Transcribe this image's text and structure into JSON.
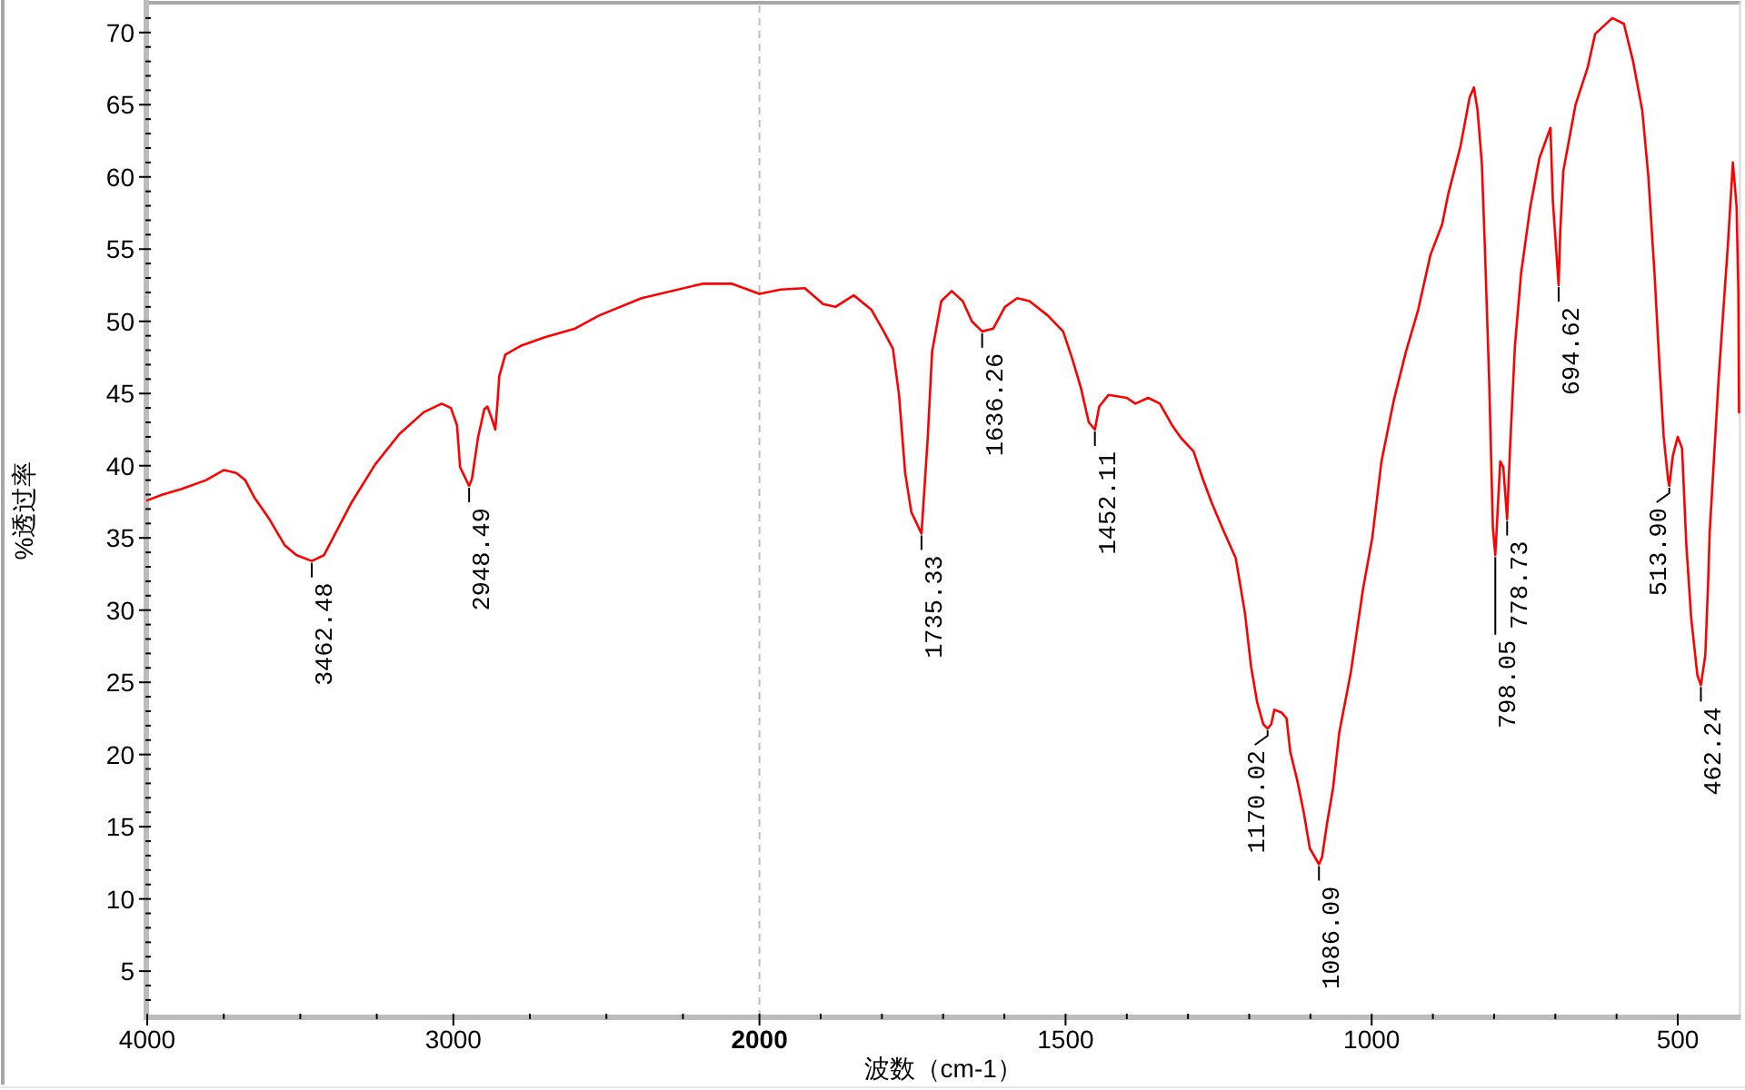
{
  "chart_data": [
    {
      "type": "line",
      "ylabel": "%透过率",
      "x": [
        4000,
        3950,
        3887,
        3808,
        3749,
        3709,
        3680,
        3650,
        3601,
        3551,
        3512,
        3462.48,
        3423,
        3393,
        3334,
        3255,
        3176,
        3097,
        3038,
        3008,
        2988,
        2978,
        2948.49,
        2939,
        2919,
        2899,
        2889,
        2875,
        2863,
        2856,
        2850,
        2830,
        2780,
        2701,
        2602,
        2524,
        2385,
        2187,
        2089,
        2000
      ],
      "series": [
        {
          "color": "#ff0000",
          "values": [
            37.6,
            38.0,
            38.4,
            39.0,
            39.7,
            39.5,
            39.0,
            37.8,
            36.3,
            34.5,
            33.8,
            33.4,
            33.8,
            35.0,
            37.4,
            40.1,
            42.2,
            43.7,
            44.3,
            44.0,
            42.8,
            39.9,
            38.6,
            39.1,
            42.0,
            43.9,
            44.1,
            43.3,
            42.5,
            44.3,
            46.2,
            47.7,
            48.3,
            48.9,
            49.5,
            50.4,
            51.6,
            52.6,
            52.6,
            51.9
          ]
        }
      ],
      "xlim": [
        4000,
        2000
      ],
      "ylim": [
        1.8,
        72
      ],
      "xticks": [
        4000,
        {
          "value": 3750,
          "label": null
        },
        {
          "value": 3500,
          "label": null
        },
        {
          "value": 3250,
          "label": null
        },
        3000,
        {
          "value": 2750,
          "label": null
        },
        {
          "value": 2500,
          "label": null
        },
        {
          "value": 2250,
          "label": null
        }
      ],
      "yticks": [
        {
          "value": 3,
          "label": null
        },
        {
          "value": 4,
          "label": null
        },
        5,
        {
          "value": 6,
          "label": null
        },
        {
          "value": 7,
          "label": null
        },
        {
          "value": 8,
          "label": null
        },
        {
          "value": 9,
          "label": null
        },
        10,
        {
          "value": 11,
          "label": null
        },
        {
          "value": 12,
          "label": null
        },
        {
          "value": 13,
          "label": null
        },
        {
          "value": 14,
          "label": null
        },
        15,
        {
          "value": 16,
          "label": null
        },
        {
          "value": 17,
          "label": null
        },
        {
          "value": 18,
          "label": null
        },
        {
          "value": 19,
          "label": null
        },
        20,
        {
          "value": 21,
          "label": null
        },
        {
          "value": 22,
          "label": null
        },
        {
          "value": 23,
          "label": null
        },
        {
          "value": 24,
          "label": null
        },
        25,
        {
          "value": 26,
          "label": null
        },
        {
          "value": 27,
          "label": null
        },
        {
          "value": 28,
          "label": null
        },
        {
          "value": 29,
          "label": null
        },
        30,
        {
          "value": 31,
          "label": null
        },
        {
          "value": 32,
          "label": null
        },
        {
          "value": 33,
          "label": null
        },
        {
          "value": 34,
          "label": null
        },
        35,
        {
          "value": 36,
          "label": null
        },
        {
          "value": 37,
          "label": null
        },
        {
          "value": 38,
          "label": null
        },
        {
          "value": 39,
          "label": null
        },
        40,
        {
          "value": 41,
          "label": null
        },
        {
          "value": 42,
          "label": null
        },
        {
          "value": 43,
          "label": null
        },
        {
          "value": 44,
          "label": null
        },
        45,
        {
          "value": 46,
          "label": null
        },
        {
          "value": 47,
          "label": null
        },
        {
          "value": 48,
          "label": null
        },
        {
          "value": 49,
          "label": null
        },
        50,
        {
          "value": 51,
          "label": null
        },
        {
          "value": 52,
          "label": null
        },
        {
          "value": 53,
          "label": null
        },
        {
          "value": 54,
          "label": null
        },
        55,
        {
          "value": 56,
          "label": null
        },
        {
          "value": 57,
          "label": null
        },
        {
          "value": 58,
          "label": null
        },
        {
          "value": 59,
          "label": null
        },
        60,
        {
          "value": 61,
          "label": null
        },
        {
          "value": 62,
          "label": null
        },
        {
          "value": 63,
          "label": null
        },
        {
          "value": 64,
          "label": null
        },
        65,
        {
          "value": 66,
          "label": null
        },
        {
          "value": 67,
          "label": null
        },
        {
          "value": 68,
          "label": null
        },
        {
          "value": 69,
          "label": null
        },
        70,
        {
          "value": 71,
          "label": null
        }
      ],
      "annotations": [
        {
          "text": "3462.48",
          "x": 3462.48,
          "y": 33.4
        },
        {
          "text": "2948.49",
          "x": 2948.49,
          "y": 38.6
        }
      ]
    },
    {
      "type": "line",
      "xlabel": "波数（cm-1）",
      "x": [
        2000,
        1965,
        1926,
        1896,
        1876,
        1846,
        1817,
        1797,
        1782,
        1772,
        1762,
        1752,
        1735.33,
        1725,
        1718,
        1703,
        1686,
        1668,
        1653,
        1636.26,
        1618,
        1599,
        1579,
        1559,
        1529,
        1504,
        1489,
        1475,
        1462,
        1452.11,
        1445,
        1430,
        1400,
        1386,
        1365,
        1346,
        1326,
        1311,
        1291,
        1276,
        1261,
        1242,
        1222,
        1207,
        1197,
        1187,
        1177,
        1170.02,
        1164,
        1159,
        1147,
        1139,
        1133,
        1121,
        1111,
        1101,
        1086.09,
        1081,
        1073,
        1063,
        1053,
        1034,
        1014,
        999,
        984,
        964,
        944,
        924,
        904,
        885,
        875,
        855,
        840,
        833,
        827,
        820,
        815,
        808,
        802,
        798.05,
        790,
        785,
        778.73,
        774,
        766,
        756,
        741,
        726,
        708,
        704,
        694.62,
        692,
        687,
        667,
        647,
        635,
        607,
        588,
        573,
        558,
        548,
        538,
        530,
        523,
        516,
        513.9,
        508,
        500,
        493,
        486,
        478,
        468,
        462.24,
        455,
        450,
        448,
        433,
        418,
        410,
        404,
        401,
        400
      ],
      "series": [
        {
          "color": "#ff0000",
          "values": [
            51.9,
            52.2,
            52.3,
            51.2,
            51.0,
            51.8,
            50.8,
            49.3,
            48.1,
            44.9,
            39.5,
            36.8,
            35.3,
            42.0,
            47.9,
            51.4,
            52.1,
            51.4,
            50.0,
            49.3,
            49.5,
            51.0,
            51.6,
            51.4,
            50.4,
            49.3,
            47.4,
            45.4,
            43.0,
            42.5,
            44.1,
            44.9,
            44.7,
            44.3,
            44.7,
            44.3,
            42.8,
            41.9,
            41.0,
            39.1,
            37.4,
            35.5,
            33.6,
            29.8,
            26.1,
            23.6,
            22.1,
            21.8,
            22.1,
            23.1,
            22.9,
            22.5,
            20.2,
            18.1,
            16.0,
            13.5,
            12.4,
            12.9,
            15.2,
            17.7,
            21.5,
            25.7,
            31.5,
            35.0,
            40.3,
            44.5,
            47.9,
            50.8,
            54.6,
            56.7,
            58.8,
            62.1,
            65.5,
            66.2,
            64.6,
            60.9,
            55.0,
            45.8,
            35.7,
            33.8,
            40.3,
            39.9,
            36.3,
            41.2,
            48.3,
            53.3,
            57.9,
            61.3,
            63.4,
            58.3,
            52.5,
            56.2,
            60.4,
            65.0,
            67.6,
            69.9,
            71.0,
            70.6,
            68.0,
            64.6,
            60.0,
            53.3,
            47.0,
            42.0,
            39.1,
            38.6,
            40.7,
            42.0,
            41.2,
            34.5,
            29.4,
            25.5,
            24.8,
            26.9,
            32.4,
            35.3,
            46.2,
            55.4,
            61.0,
            58.0,
            52.0,
            43.7
          ]
        }
      ],
      "xlim": [
        2000,
        400
      ],
      "ylim": [
        1.8,
        72
      ],
      "tick_labels": "x",
      "xticks": [
        2000,
        {
          "value": 1900,
          "label": null
        },
        {
          "value": 1800,
          "label": null
        },
        {
          "value": 1700,
          "label": null
        },
        {
          "value": 1600,
          "label": null
        },
        1500,
        {
          "value": 1400,
          "label": null
        },
        {
          "value": 1300,
          "label": null
        },
        {
          "value": 1200,
          "label": null
        },
        {
          "value": 1100,
          "label": null
        },
        1000,
        {
          "value": 900,
          "label": null
        },
        {
          "value": 800,
          "label": null
        },
        {
          "value": 700,
          "label": null
        },
        {
          "value": 600,
          "label": null
        },
        500
      ],
      "ref_lines": [
        {
          "axis": "x",
          "value": 2000,
          "color": "#c0c0c0",
          "line_style": "dashed"
        }
      ],
      "annotations": [
        {
          "text": "1735.33",
          "x": 1735.33,
          "y": 35.3
        },
        {
          "text": "1636.26",
          "x": 1636.26,
          "y": 49.3
        },
        {
          "text": "1452.11",
          "x": 1452.11,
          "y": 42.5
        },
        {
          "text": "1170.02",
          "x": 1170.02,
          "y": 21.8
        },
        {
          "text": "1086.09",
          "x": 1086.09,
          "y": 12.4
        },
        {
          "text": "798.05",
          "x": 798.05,
          "y": 33.8
        },
        {
          "text": "778.73",
          "x": 778.73,
          "y": 36.3
        },
        {
          "text": "694.62",
          "x": 694.62,
          "y": 52.5
        },
        {
          "text": "513.90",
          "x": 513.9,
          "y": 38.6
        },
        {
          "text": "462.24",
          "x": 462.24,
          "y": 24.8
        }
      ]
    }
  ]
}
